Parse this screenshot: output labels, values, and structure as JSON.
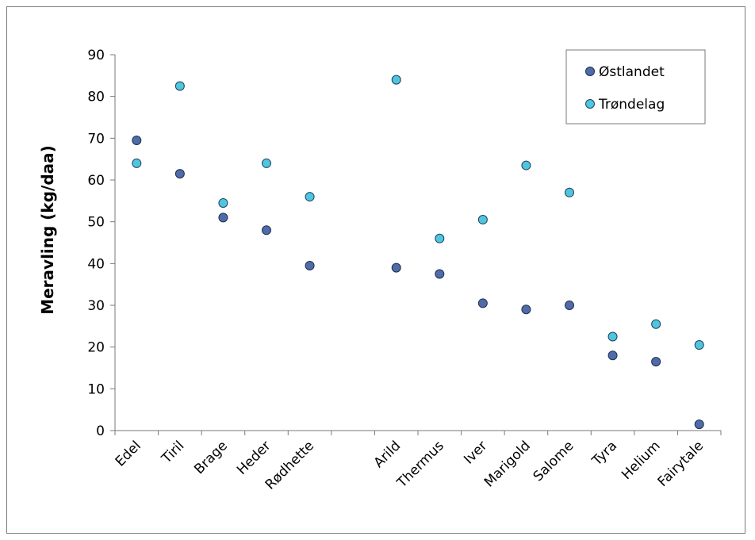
{
  "chart_data": {
    "type": "scatter",
    "title": "",
    "xlabel": "",
    "ylabel": "Meravling (kg/daa)",
    "ylim": [
      0,
      90
    ],
    "yticks": [
      0,
      10,
      20,
      30,
      40,
      50,
      60,
      70,
      80,
      90
    ],
    "legend_position": "top-right",
    "grid": false,
    "categories": [
      "Edel",
      "Tiril",
      "Brage",
      "Heder",
      "Rødhette",
      "",
      "Arild",
      "Thermus",
      "Iver",
      "Marigold",
      "Salome",
      "Tyra",
      "Helium",
      "Fairytale"
    ],
    "series": [
      {
        "name": "Østlandet",
        "color": "#4f6ca8",
        "values": [
          69.5,
          61.5,
          51,
          48,
          39.5,
          null,
          39,
          37.5,
          30.5,
          29,
          30,
          18,
          16.5,
          1.5
        ]
      },
      {
        "name": "Trøndelag",
        "color": "#4fc6de",
        "values": [
          64,
          82.5,
          54.5,
          64,
          56,
          null,
          84,
          46,
          50.5,
          63.5,
          57,
          22.5,
          25.5,
          20.5
        ]
      }
    ]
  }
}
